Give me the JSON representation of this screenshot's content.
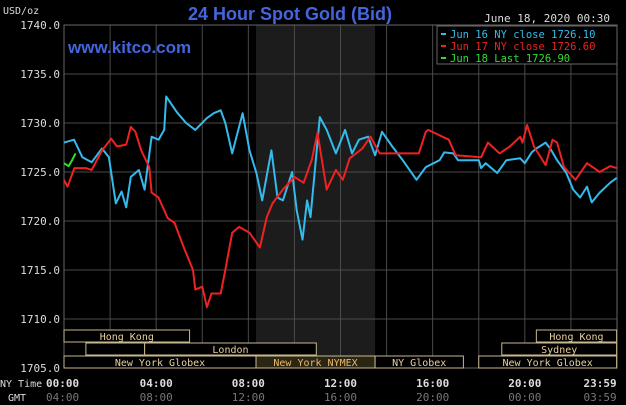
{
  "chart_data": {
    "type": "line",
    "title": "24 Hour Spot Gold (Bid)",
    "watermark": "www.kitco.com",
    "timestamp": "June 18, 2020 00:30",
    "ylabel": "USD/oz",
    "ylim": [
      1705,
      1740
    ],
    "yticks": [
      "1740.0",
      "1735.0",
      "1730.0",
      "1725.0",
      "1720.0",
      "1715.0",
      "1710.0",
      "1705.0"
    ],
    "xaxis_label_ny": "NY Time",
    "xaxis_label_gmt": "GMT",
    "xticks_ny": [
      "00:00",
      "04:00",
      "08:00",
      "12:00",
      "16:00",
      "20:00",
      "23:59"
    ],
    "xticks_gmt": [
      "04:00",
      "08:00",
      "12:00",
      "16:00",
      "20:00",
      "00:00",
      "03:59"
    ],
    "grid": true,
    "legend_position": "top-right",
    "shaded_period": [
      "08:20",
      "13:30"
    ],
    "series": [
      {
        "name": "Jun 16 NY close 1726.10",
        "color": "#33bbee",
        "points": [
          [
            "00:00",
            1728.0
          ],
          [
            "00:26",
            1728.3
          ],
          [
            "00:48",
            1726.5
          ],
          [
            "01:12",
            1726.0
          ],
          [
            "01:39",
            1727.4
          ],
          [
            "01:57",
            1726.5
          ],
          [
            "02:15",
            1721.8
          ],
          [
            "02:30",
            1723.0
          ],
          [
            "02:42",
            1721.4
          ],
          [
            "02:54",
            1724.5
          ],
          [
            "03:15",
            1725.2
          ],
          [
            "03:30",
            1723.2
          ],
          [
            "03:48",
            1728.6
          ],
          [
            "04:06",
            1728.3
          ],
          [
            "04:21",
            1729.3
          ],
          [
            "04:26",
            1732.7
          ],
          [
            "04:54",
            1731.1
          ],
          [
            "05:18",
            1730.0
          ],
          [
            "05:42",
            1729.3
          ],
          [
            "06:12",
            1730.5
          ],
          [
            "06:30",
            1731.0
          ],
          [
            "06:48",
            1731.3
          ],
          [
            "07:00",
            1730.0
          ],
          [
            "07:18",
            1726.9
          ],
          [
            "07:45",
            1731.0
          ],
          [
            "08:03",
            1727.2
          ],
          [
            "08:21",
            1724.9
          ],
          [
            "08:36",
            1722.1
          ],
          [
            "09:00",
            1727.2
          ],
          [
            "09:16",
            1722.4
          ],
          [
            "09:30",
            1722.1
          ],
          [
            "09:54",
            1725.0
          ],
          [
            "10:06",
            1721.1
          ],
          [
            "10:21",
            1718.1
          ],
          [
            "10:33",
            1722.1
          ],
          [
            "10:42",
            1720.4
          ],
          [
            "11:06",
            1730.6
          ],
          [
            "11:24",
            1729.3
          ],
          [
            "11:48",
            1726.9
          ],
          [
            "12:12",
            1729.3
          ],
          [
            "12:30",
            1726.9
          ],
          [
            "12:48",
            1728.3
          ],
          [
            "13:12",
            1728.6
          ],
          [
            "13:30",
            1726.7
          ],
          [
            "13:48",
            1729.1
          ],
          [
            "14:15",
            1727.6
          ],
          [
            "14:42",
            1726.2
          ],
          [
            "15:18",
            1724.2
          ],
          [
            "15:42",
            1725.5
          ],
          [
            "16:18",
            1726.2
          ],
          [
            "16:30",
            1727.0
          ],
          [
            "16:54",
            1726.9
          ],
          [
            "17:06",
            1726.2
          ],
          [
            "18:00",
            1726.2
          ],
          [
            "18:06",
            1725.4
          ],
          [
            "18:18",
            1725.9
          ],
          [
            "18:48",
            1724.9
          ],
          [
            "19:12",
            1726.2
          ],
          [
            "19:48",
            1726.4
          ],
          [
            "20:00",
            1725.9
          ],
          [
            "20:18",
            1727.0
          ],
          [
            "20:30",
            1727.4
          ],
          [
            "20:54",
            1728.0
          ],
          [
            "21:06",
            1727.4
          ],
          [
            "21:24",
            1726.2
          ],
          [
            "21:48",
            1724.9
          ],
          [
            "22:06",
            1723.2
          ],
          [
            "22:24",
            1722.4
          ],
          [
            "22:42",
            1723.5
          ],
          [
            "22:54",
            1721.9
          ],
          [
            "23:15",
            1722.9
          ],
          [
            "23:42",
            1723.9
          ],
          [
            "23:59",
            1724.4
          ]
        ]
      },
      {
        "name": "Jun 17 NY close 1726.60",
        "color": "#ee2222",
        "points": [
          [
            "00:00",
            1724.2
          ],
          [
            "00:09",
            1723.5
          ],
          [
            "00:27",
            1725.4
          ],
          [
            "00:57",
            1725.4
          ],
          [
            "01:12",
            1725.2
          ],
          [
            "01:39",
            1727.2
          ],
          [
            "02:03",
            1728.4
          ],
          [
            "02:18",
            1727.6
          ],
          [
            "02:42",
            1727.8
          ],
          [
            "02:54",
            1729.6
          ],
          [
            "03:06",
            1729.1
          ],
          [
            "03:21",
            1727.2
          ],
          [
            "03:42",
            1725.5
          ],
          [
            "03:48",
            1722.9
          ],
          [
            "04:06",
            1722.4
          ],
          [
            "04:30",
            1720.3
          ],
          [
            "04:48",
            1719.8
          ],
          [
            "05:12",
            1717.3
          ],
          [
            "05:36",
            1715.0
          ],
          [
            "05:42",
            1713.0
          ],
          [
            "06:00",
            1713.3
          ],
          [
            "06:12",
            1711.2
          ],
          [
            "06:24",
            1712.6
          ],
          [
            "06:48",
            1712.6
          ],
          [
            "07:00",
            1715.0
          ],
          [
            "07:18",
            1718.8
          ],
          [
            "07:36",
            1719.4
          ],
          [
            "08:03",
            1718.8
          ],
          [
            "08:30",
            1717.3
          ],
          [
            "08:48",
            1720.4
          ],
          [
            "09:03",
            1721.8
          ],
          [
            "09:30",
            1723.2
          ],
          [
            "10:00",
            1724.5
          ],
          [
            "10:24",
            1723.9
          ],
          [
            "10:45",
            1726.2
          ],
          [
            "11:00",
            1729.0
          ],
          [
            "11:24",
            1723.2
          ],
          [
            "11:48",
            1725.2
          ],
          [
            "12:06",
            1724.2
          ],
          [
            "12:24",
            1726.4
          ],
          [
            "12:57",
            1727.4
          ],
          [
            "13:18",
            1728.6
          ],
          [
            "13:42",
            1726.9
          ],
          [
            "14:24",
            1726.9
          ],
          [
            "15:24",
            1726.9
          ],
          [
            "15:42",
            1729.1
          ],
          [
            "15:48",
            1729.3
          ],
          [
            "16:42",
            1728.3
          ],
          [
            "17:00",
            1726.7
          ],
          [
            "18:06",
            1726.5
          ],
          [
            "18:24",
            1728.0
          ],
          [
            "18:54",
            1726.9
          ],
          [
            "19:21",
            1727.6
          ],
          [
            "19:48",
            1728.6
          ],
          [
            "19:54",
            1728.0
          ],
          [
            "20:06",
            1729.8
          ],
          [
            "20:24",
            1727.6
          ],
          [
            "20:54",
            1725.7
          ],
          [
            "21:12",
            1728.3
          ],
          [
            "21:24",
            1728.0
          ],
          [
            "21:42",
            1725.5
          ],
          [
            "22:12",
            1724.2
          ],
          [
            "22:42",
            1725.9
          ],
          [
            "23:15",
            1725.0
          ],
          [
            "23:42",
            1725.6
          ],
          [
            "23:59",
            1725.4
          ]
        ]
      },
      {
        "name": "Jun 18 Last 1726.90",
        "color": "#33dd33",
        "points": [
          [
            "00:00",
            1725.9
          ],
          [
            "00:12",
            1725.6
          ],
          [
            "00:21",
            1726.2
          ],
          [
            "00:30",
            1726.9
          ]
        ]
      }
    ],
    "sessions": [
      {
        "name": "Hong Kong",
        "start": "00:00",
        "end": "05:27",
        "row": 1
      },
      {
        "name": "Hong Kong",
        "start": "20:30",
        "end": "23:59",
        "row": 1
      },
      {
        "name": "",
        "start": "00:57",
        "end": "03:30",
        "row": 2
      },
      {
        "name": "London",
        "start": "03:30",
        "end": "10:57",
        "row": 2
      },
      {
        "name": "Sydney",
        "start": "19:00",
        "end": "23:59",
        "row": 2
      },
      {
        "name": "New York Globex",
        "start": "00:00",
        "end": "08:20",
        "row": 3
      },
      {
        "name": "New York NYMEX",
        "start": "08:20",
        "end": "13:30",
        "row": 3
      },
      {
        "name": "NY Globex",
        "start": "13:30",
        "end": "17:20",
        "row": 3
      },
      {
        "name": "New York Globex",
        "start": "18:00",
        "end": "23:59",
        "row": 3
      }
    ]
  }
}
